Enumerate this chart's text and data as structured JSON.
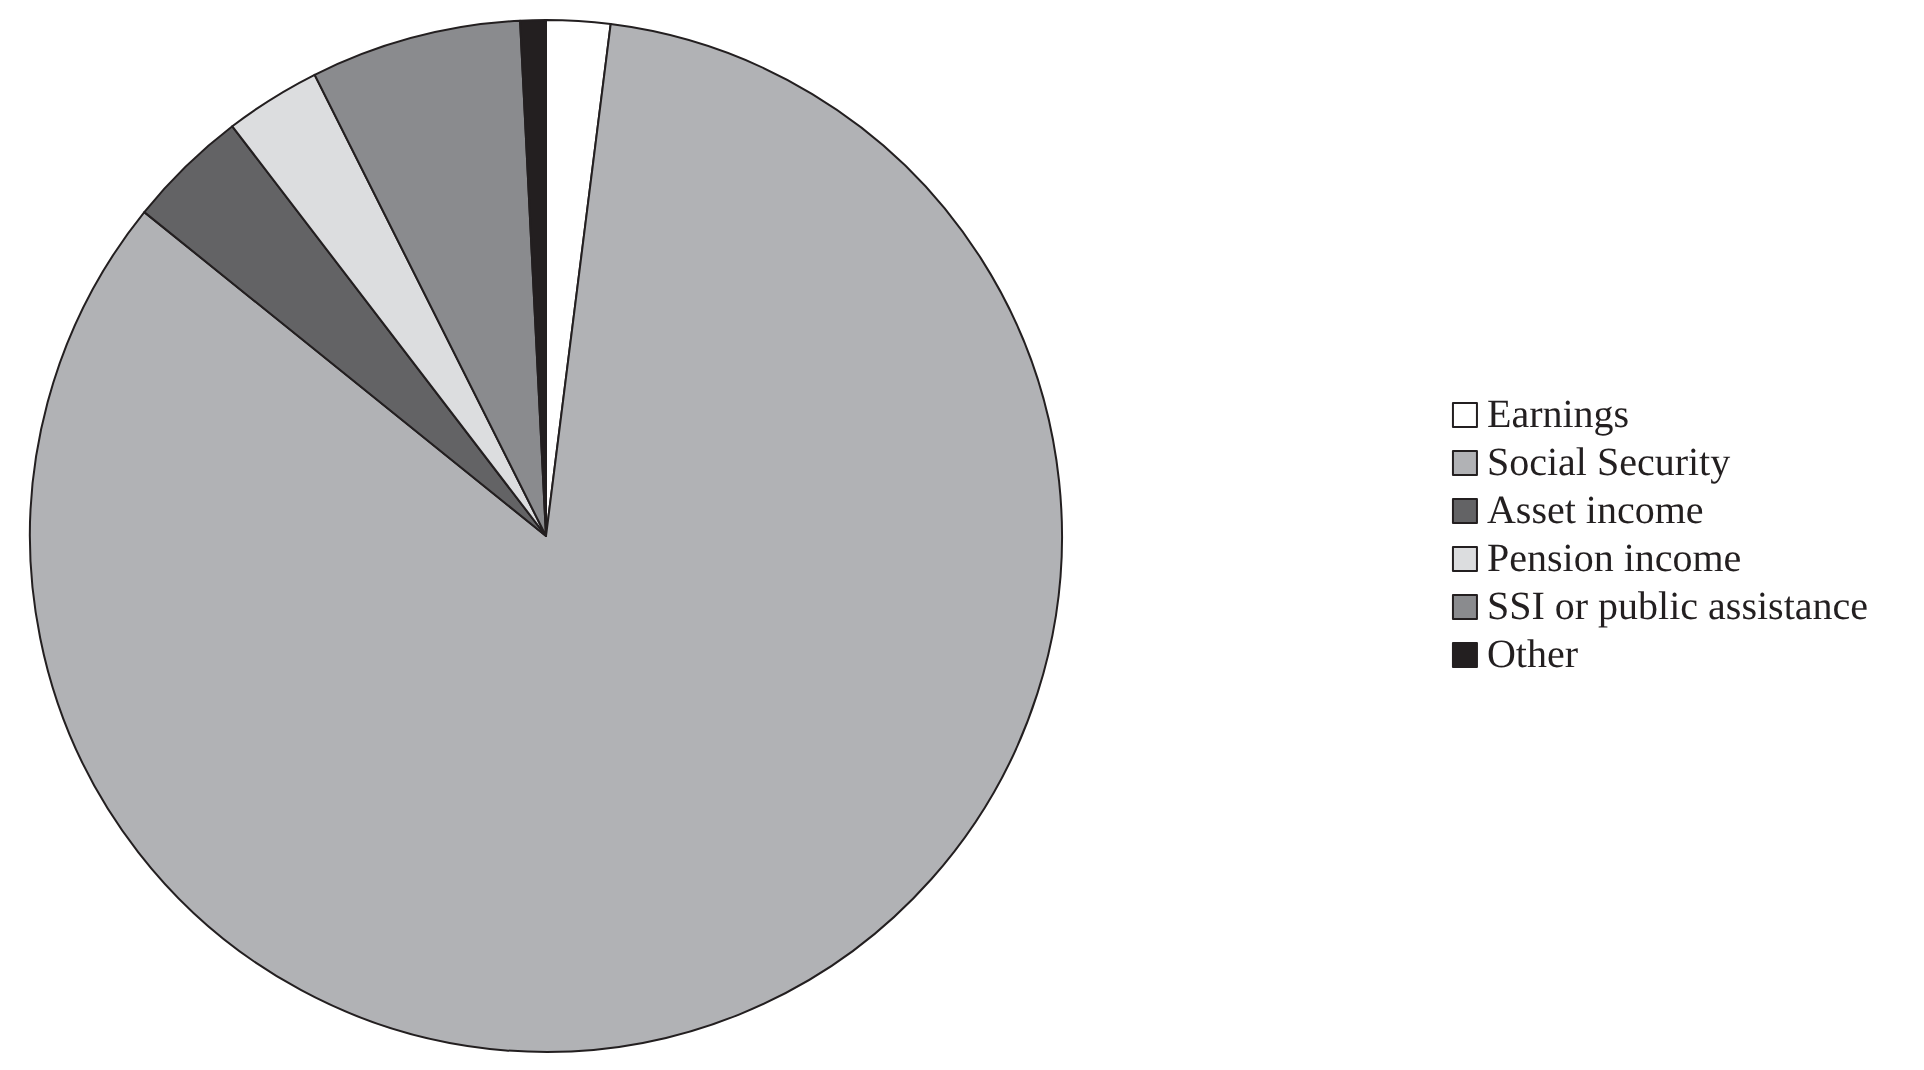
{
  "chart_data": {
    "type": "pie",
    "categories": [
      "Earnings",
      "Social Security",
      "Asset income",
      "Pension income",
      "SSI or public assistance",
      "Other"
    ],
    "values": [
      2.0,
      83.8,
      3.8,
      3.0,
      6.6,
      0.8
    ],
    "colors": [
      "#ffffff",
      "#b1b2b5",
      "#636365",
      "#dcdddf",
      "#8a8b8e",
      "#231f20"
    ],
    "legend": "right"
  }
}
